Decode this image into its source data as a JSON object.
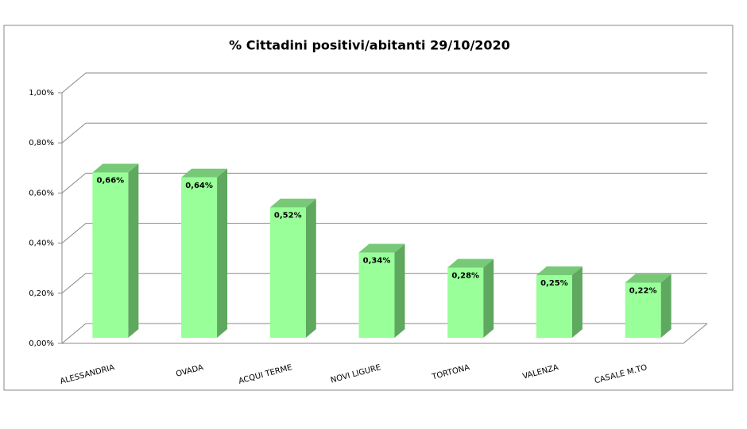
{
  "chart_data": {
    "type": "bar3d",
    "title": "% Cittadini positivi/abitanti 29/10/2020",
    "categories": [
      "ALESSANDRIA",
      "OVADA",
      "ACQUI TERME",
      "NOVI LIGURE",
      "TORTONA",
      "VALENZA",
      "CASALE M.TO"
    ],
    "values": [
      0.66,
      0.64,
      0.52,
      0.34,
      0.28,
      0.25,
      0.22
    ],
    "value_labels": [
      "0,66%",
      "0,64%",
      "0,52%",
      "0,34%",
      "0,28%",
      "0,25%",
      "0,22%"
    ],
    "color": "#99ff99",
    "ylim": [
      0,
      1
    ],
    "yticks": [
      {
        "value": 0,
        "label": "0,00%"
      },
      {
        "value": 0.2,
        "label": "0,20%"
      },
      {
        "value": 0.4,
        "label": "0,40%"
      },
      {
        "value": 0.6,
        "label": "0,60%"
      },
      {
        "value": 0.8,
        "label": "0,80%"
      },
      {
        "value": 1,
        "label": "1,00%"
      }
    ],
    "grid": true
  }
}
